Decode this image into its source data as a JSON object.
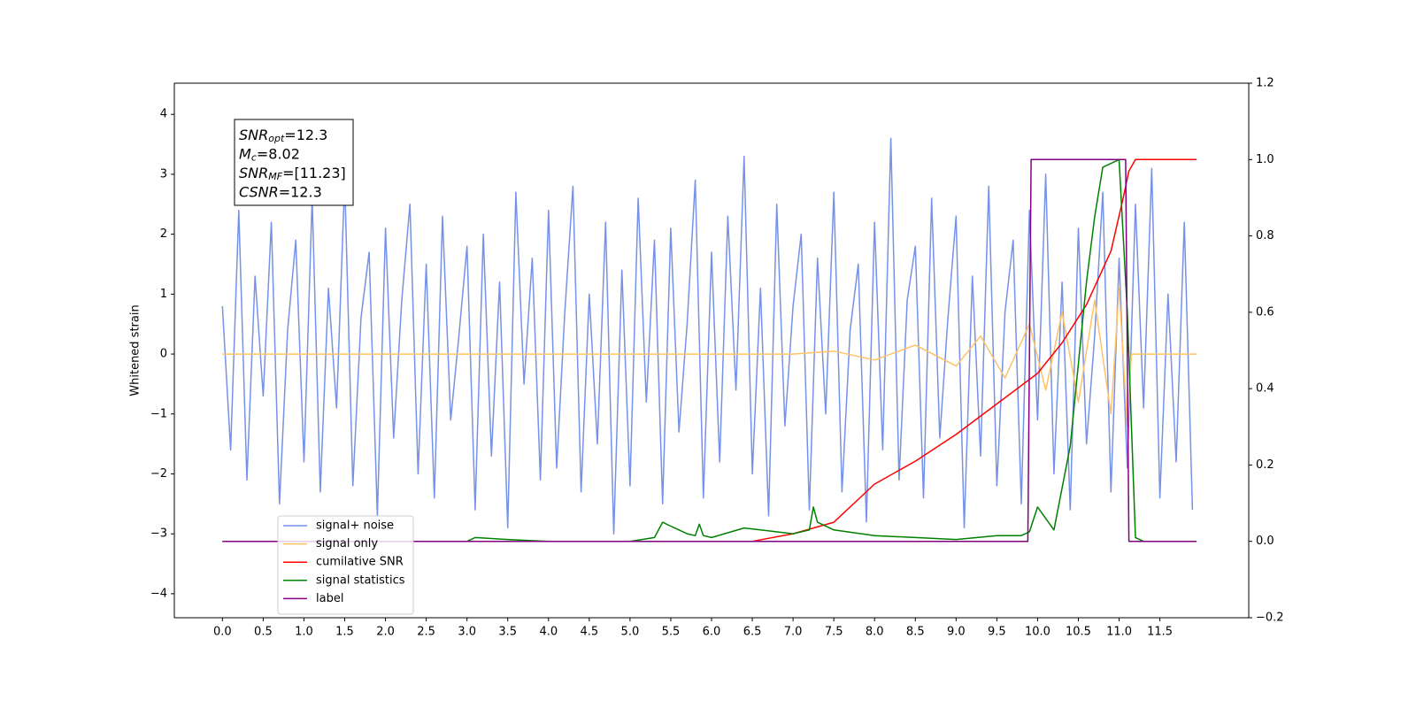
{
  "chart_data": {
    "type": "line",
    "ylabel": "Whitened strain",
    "annotations": [
      {
        "main": "SNR",
        "sub": "opt",
        "rest": "=12.3"
      },
      {
        "main": "M",
        "sub": "c",
        "rest": "=8.02"
      },
      {
        "main": "SNR",
        "sub": "MF",
        "rest": "=[11.23]"
      },
      {
        "main": "CSNR",
        "sub": null,
        "rest": "=12.3"
      }
    ],
    "xlim": [
      -0.59,
      12.59
    ],
    "xticks": [
      {
        "value": 0,
        "label": "0.0"
      },
      0.5,
      {
        "value": 1,
        "label": "1.0"
      },
      1.5,
      {
        "value": 2,
        "label": "2.0"
      },
      2.5,
      {
        "value": 3,
        "label": "3.0"
      },
      3.5,
      {
        "value": 4,
        "label": "4.0"
      },
      4.5,
      {
        "value": 5,
        "label": "5.0"
      },
      5.5,
      {
        "value": 6,
        "label": "6.0"
      },
      6.5,
      {
        "value": 7,
        "label": "7.0"
      },
      7.5,
      {
        "value": 8,
        "label": "8.0"
      },
      8.5,
      {
        "value": 9,
        "label": "9.0"
      },
      9.5,
      {
        "value": 10,
        "label": "10.0"
      },
      10.5,
      {
        "value": 11,
        "label": "11.0"
      },
      11.5
    ],
    "ylim": [
      -4.4,
      4.52
    ],
    "yticks": [
      {
        "value": -4,
        "label": "−4"
      },
      {
        "value": -3,
        "label": "−3"
      },
      {
        "value": -2,
        "label": "−2"
      },
      {
        "value": -1,
        "label": "−1"
      },
      0,
      1,
      2,
      3,
      4
    ],
    "y2lim": [
      -0.2,
      1.2
    ],
    "y2ticks": [
      {
        "value": -0.2,
        "label": "−0.2"
      },
      {
        "value": 0,
        "label": "0.0"
      },
      0.2,
      0.4,
      0.6,
      0.8,
      {
        "value": 1,
        "label": "1.0"
      },
      1.2
    ],
    "legend": "lower left",
    "series": [
      {
        "name": "signal+ noise",
        "color": "#7591e8",
        "axis": "y",
        "x": [
          0,
          0.1,
          0.2,
          0.3,
          0.4,
          0.5,
          0.6,
          0.7,
          0.8,
          0.9,
          1,
          1.1,
          1.2,
          1.3,
          1.4,
          1.5,
          1.6,
          1.7,
          1.8,
          1.9,
          2,
          2.1,
          2.2,
          2.3,
          2.4,
          2.5,
          2.6,
          2.7,
          2.8,
          2.9,
          3,
          3.1,
          3.2,
          3.3,
          3.4,
          3.5,
          3.6,
          3.7,
          3.8,
          3.9,
          4,
          4.1,
          4.2,
          4.3,
          4.4,
          4.5,
          4.6,
          4.7,
          4.8,
          4.9,
          5,
          5.1,
          5.2,
          5.3,
          5.4,
          5.5,
          5.6,
          5.7,
          5.8,
          5.9,
          6,
          6.1,
          6.2,
          6.3,
          6.4,
          6.5,
          6.6,
          6.7,
          6.8,
          6.9,
          7,
          7.1,
          7.2,
          7.3,
          7.4,
          7.5,
          7.6,
          7.7,
          7.8,
          7.9,
          8,
          8.1,
          8.2,
          8.3,
          8.4,
          8.5,
          8.6,
          8.7,
          8.8,
          8.9,
          9,
          9.1,
          9.2,
          9.3,
          9.4,
          9.5,
          9.6,
          9.7,
          9.8,
          9.9,
          10,
          10.1,
          10.2,
          10.3,
          10.4,
          10.5,
          10.6,
          10.7,
          10.8,
          10.9,
          11,
          11.1,
          11.2,
          11.3,
          11.4,
          11.5,
          11.6,
          11.7,
          11.8,
          11.9
        ],
        "values": [
          0.8,
          -1.6,
          2.4,
          -2.1,
          1.3,
          -0.7,
          2.2,
          -2.5,
          0.4,
          1.9,
          -1.8,
          2.6,
          -2.3,
          1.1,
          -0.9,
          2.9,
          -2.2,
          0.6,
          1.7,
          -2.7,
          2.1,
          -1.4,
          0.9,
          2.5,
          -2.0,
          1.5,
          -2.4,
          2.3,
          -1.1,
          0.3,
          1.8,
          -2.6,
          2.0,
          -1.7,
          1.2,
          -2.9,
          2.7,
          -0.5,
          1.6,
          -2.1,
          2.4,
          -1.9,
          0.7,
          2.8,
          -2.3,
          1.0,
          -1.5,
          2.2,
          -3.0,
          1.4,
          -2.2,
          2.6,
          -0.8,
          1.9,
          -2.5,
          2.1,
          -1.3,
          0.5,
          2.9,
          -2.4,
          1.7,
          -1.8,
          2.3,
          -0.6,
          3.3,
          -2.0,
          1.1,
          -2.7,
          2.5,
          -1.2,
          0.8,
          2.0,
          -2.6,
          1.6,
          -1.0,
          2.7,
          -2.3,
          0.4,
          1.5,
          -2.8,
          2.2,
          -1.6,
          3.6,
          -2.1,
          0.9,
          1.8,
          -2.4,
          2.6,
          -1.4,
          0.6,
          2.3,
          -2.9,
          1.3,
          -1.7,
          2.8,
          -2.2,
          0.7,
          1.9,
          -2.5,
          2.4,
          -1.1,
          3.0,
          -2.0,
          1.2,
          -2.6,
          2.1,
          -1.5,
          0.3,
          2.7,
          -2.3,
          1.6,
          -1.9,
          2.5,
          -0.9,
          3.1,
          -2.4,
          1.0,
          -1.8,
          2.2,
          -2.6
        ]
      },
      {
        "name": "signal only",
        "color": "#ffc266",
        "axis": "y",
        "x": [
          0,
          7.0,
          7.5,
          8.0,
          8.5,
          9.0,
          9.3,
          9.6,
          9.9,
          10.1,
          10.3,
          10.5,
          10.7,
          10.9,
          11.0,
          11.1,
          11.15,
          11.2,
          11.95
        ],
        "values": [
          0,
          0,
          0.05,
          -0.1,
          0.15,
          -0.2,
          0.3,
          -0.4,
          0.5,
          -0.6,
          0.7,
          -0.8,
          0.9,
          -1.0,
          1.1,
          -1.2,
          0,
          0,
          0
        ]
      },
      {
        "name": "cumilative SNR",
        "color": "#ff0000",
        "axis": "y2",
        "x": [
          0,
          6.5,
          7.0,
          7.5,
          8.0,
          8.5,
          9.0,
          9.5,
          10.0,
          10.3,
          10.6,
          10.9,
          11.05,
          11.12,
          11.2,
          11.95
        ],
        "values": [
          0,
          0,
          0.02,
          0.05,
          0.15,
          0.21,
          0.28,
          0.36,
          0.44,
          0.52,
          0.62,
          0.76,
          0.9,
          0.97,
          1.0,
          1.0
        ]
      },
      {
        "name": "signal statistics",
        "color": "#008000",
        "axis": "y2",
        "x": [
          0,
          3.0,
          3.1,
          3.5,
          4.0,
          5.0,
          5.3,
          5.4,
          5.5,
          5.7,
          5.8,
          5.85,
          5.9,
          6.0,
          6.4,
          6.6,
          7.0,
          7.2,
          7.25,
          7.3,
          7.5,
          8.0,
          8.5,
          9.0,
          9.5,
          9.8,
          9.9,
          10.0,
          10.2,
          10.4,
          10.6,
          10.7,
          10.8,
          11.0,
          11.1,
          11.2,
          11.3
        ],
        "values": [
          0,
          0,
          0.01,
          0.005,
          0,
          0,
          0.01,
          0.05,
          0.04,
          0.02,
          0.015,
          0.045,
          0.015,
          0.01,
          0.035,
          0.03,
          0.02,
          0.03,
          0.09,
          0.05,
          0.03,
          0.015,
          0.01,
          0.005,
          0.015,
          0.015,
          0.025,
          0.09,
          0.03,
          0.25,
          0.68,
          0.85,
          0.98,
          1.0,
          0.6,
          0.01,
          0
        ]
      },
      {
        "name": "label",
        "color": "#800080",
        "axis": "y2",
        "x": [
          0,
          9.88,
          9.92,
          11.08,
          11.12,
          11.95
        ],
        "values": [
          0,
          0,
          1,
          1,
          0,
          0
        ]
      }
    ]
  }
}
